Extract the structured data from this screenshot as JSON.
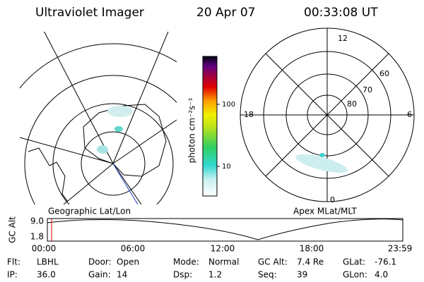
{
  "header": {
    "title": "Ultraviolet Imager",
    "date": "20 Apr 07",
    "time": "00:33:08 UT"
  },
  "colorbar": {
    "label": "photon cm⁻²s⁻¹",
    "ticks": [
      "100",
      "10"
    ]
  },
  "left_panel": {
    "caption": "Geographic Lat/Lon"
  },
  "right_panel": {
    "caption": "Apex MLat/MLT",
    "mlt_labels": [
      "12",
      "18",
      "6",
      "0"
    ],
    "lat_labels": [
      "60",
      "70",
      "80"
    ]
  },
  "altitude_plot": {
    "ylabel": "GC Alt",
    "yticks": [
      "9.0",
      "1.8"
    ],
    "xticks": [
      "00:00",
      "06:00",
      "12:00",
      "18:00",
      "23:59"
    ]
  },
  "footer": [
    [
      {
        "label": "Flt:",
        "value": "LBHL"
      },
      {
        "label": "Door:",
        "value": "Open"
      },
      {
        "label": "Mode:",
        "value": "Normal"
      },
      {
        "label": "GC Alt:",
        "value": "7.4 Re"
      },
      {
        "label": "GLat:",
        "value": "-76.1"
      }
    ],
    [
      {
        "label": "IP:",
        "value": "36.0"
      },
      {
        "label": "Gain:",
        "value": "14"
      },
      {
        "label": "Dsp:",
        "value": "1.2"
      },
      {
        "label": "Seq:",
        "value": "39"
      },
      {
        "label": "GLon:",
        "value": "4.0"
      }
    ]
  ]
}
